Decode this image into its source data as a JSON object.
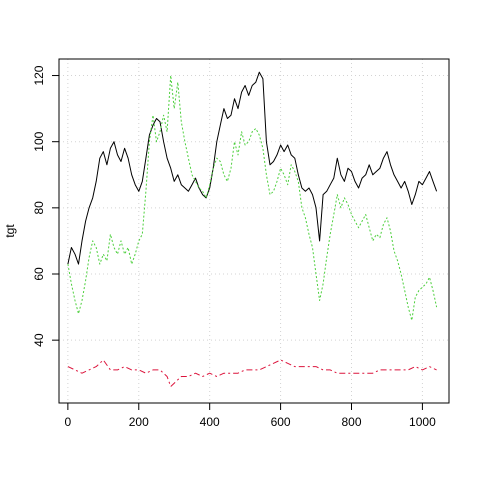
{
  "chart_data": {
    "type": "line",
    "title": "",
    "xlabel": "",
    "ylabel": "tgt",
    "xlim": [
      -25,
      1075
    ],
    "ylim": [
      21,
      125
    ],
    "x_ticks": [
      0,
      200,
      400,
      600,
      800,
      1000
    ],
    "y_ticks": [
      40,
      60,
      80,
      100,
      120
    ],
    "x_tick_labels": [
      "0",
      "200",
      "400",
      "600",
      "800",
      "1000"
    ],
    "y_tick_labels": [
      "40",
      "60",
      "80",
      "100",
      "120"
    ],
    "grid": true,
    "legend": "none",
    "series": [
      {
        "color": "#000000",
        "dash": "solid",
        "x": [
          0,
          10,
          20,
          30,
          40,
          50,
          60,
          70,
          80,
          90,
          100,
          110,
          120,
          130,
          140,
          150,
          160,
          170,
          180,
          190,
          200,
          210,
          220,
          230,
          240,
          250,
          260,
          270,
          280,
          290,
          300,
          310,
          320,
          330,
          340,
          350,
          360,
          370,
          380,
          390,
          400,
          410,
          420,
          430,
          440,
          450,
          460,
          470,
          480,
          490,
          500,
          510,
          520,
          530,
          540,
          550,
          560,
          570,
          580,
          590,
          600,
          610,
          620,
          630,
          640,
          650,
          660,
          670,
          680,
          690,
          700,
          710,
          720,
          730,
          740,
          750,
          760,
          770,
          780,
          790,
          800,
          810,
          820,
          830,
          840,
          850,
          860,
          870,
          880,
          890,
          900,
          910,
          920,
          930,
          940,
          950,
          960,
          970,
          980,
          990,
          1000,
          1010,
          1020,
          1030,
          1040
        ],
        "values": [
          63,
          68,
          66,
          63,
          70,
          76,
          80,
          83,
          88,
          95,
          97,
          93,
          98,
          100,
          96,
          94,
          98,
          95,
          90,
          87,
          85,
          88,
          95,
          102,
          105,
          107,
          106,
          100,
          95,
          92,
          88,
          90,
          87,
          86,
          85,
          87,
          89,
          86,
          84,
          83,
          86,
          92,
          100,
          105,
          110,
          107,
          108,
          113,
          110,
          115,
          117,
          114,
          117,
          118,
          121,
          119,
          100,
          93,
          94,
          96,
          99,
          97,
          99,
          96,
          95,
          90,
          86,
          85,
          86,
          84,
          80,
          70,
          84,
          85,
          87,
          89,
          95,
          90,
          88,
          92,
          91,
          88,
          86,
          89,
          90,
          93,
          90,
          91,
          92,
          95,
          97,
          93,
          90,
          88,
          86,
          88,
          85,
          81,
          84,
          88,
          87,
          89,
          91,
          88,
          85
        ]
      },
      {
        "color": "#dc143c",
        "dash": "6,3,2,3",
        "x": [
          0,
          20,
          40,
          60,
          80,
          100,
          120,
          140,
          160,
          180,
          200,
          220,
          240,
          260,
          280,
          290,
          300,
          320,
          340,
          360,
          380,
          400,
          420,
          440,
          460,
          480,
          500,
          520,
          540,
          560,
          580,
          600,
          620,
          640,
          660,
          680,
          700,
          720,
          740,
          760,
          780,
          800,
          820,
          840,
          860,
          880,
          900,
          920,
          940,
          960,
          980,
          1000,
          1020,
          1040
        ],
        "values": [
          32,
          31,
          30,
          31,
          32,
          34,
          31,
          31,
          32,
          31,
          31,
          30,
          31,
          31,
          29,
          26,
          27,
          29,
          29,
          30,
          29,
          30,
          29,
          30,
          30,
          30,
          31,
          31,
          31,
          32,
          33,
          34,
          33,
          32,
          32,
          32,
          32,
          31,
          31,
          30,
          30,
          30,
          30,
          30,
          30,
          31,
          31,
          31,
          31,
          31,
          32,
          31,
          32,
          31
        ]
      },
      {
        "color": "#4ccf3c",
        "dash": "2,2",
        "x": [
          0,
          10,
          20,
          30,
          40,
          50,
          60,
          70,
          80,
          90,
          100,
          110,
          120,
          130,
          140,
          150,
          160,
          170,
          180,
          190,
          200,
          210,
          220,
          230,
          240,
          250,
          260,
          270,
          280,
          290,
          300,
          310,
          320,
          330,
          340,
          350,
          360,
          370,
          380,
          390,
          400,
          410,
          420,
          430,
          440,
          450,
          460,
          470,
          480,
          490,
          500,
          510,
          520,
          530,
          540,
          550,
          560,
          570,
          580,
          590,
          600,
          610,
          620,
          630,
          640,
          650,
          660,
          670,
          680,
          690,
          700,
          710,
          720,
          730,
          740,
          750,
          760,
          770,
          780,
          790,
          800,
          810,
          820,
          830,
          840,
          850,
          860,
          870,
          880,
          890,
          900,
          910,
          920,
          930,
          940,
          950,
          960,
          970,
          980,
          990,
          1000,
          1010,
          1020,
          1030,
          1040
        ],
        "values": [
          63,
          57,
          52,
          48,
          52,
          58,
          65,
          70,
          68,
          63,
          66,
          64,
          72,
          68,
          66,
          70,
          66,
          68,
          63,
          66,
          70,
          72,
          85,
          100,
          108,
          100,
          103,
          108,
          103,
          120,
          110,
          118,
          106,
          100,
          95,
          90,
          88,
          86,
          85,
          83,
          87,
          92,
          95,
          94,
          90,
          88,
          92,
          100,
          96,
          103,
          99,
          100,
          103,
          104,
          102,
          98,
          90,
          84,
          85,
          88,
          92,
          90,
          87,
          93,
          91,
          88,
          80,
          77,
          72,
          68,
          60,
          52,
          57,
          65,
          72,
          78,
          84,
          80,
          83,
          81,
          78,
          76,
          74,
          76,
          78,
          74,
          70,
          72,
          71,
          75,
          77,
          73,
          67,
          64,
          60,
          55,
          50,
          46,
          53,
          55,
          56,
          57,
          59,
          55,
          50
        ]
      }
    ]
  }
}
